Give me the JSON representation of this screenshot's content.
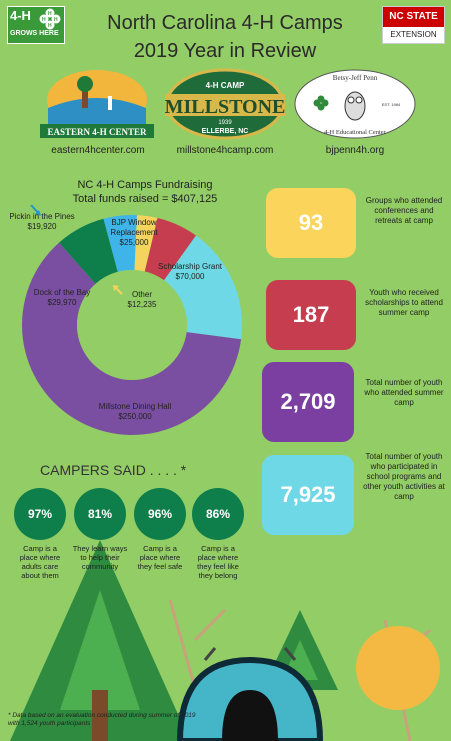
{
  "header": {
    "title_line1": "North Carolina 4-H Camps",
    "title_line2": "2019 Year in Review",
    "logo_left_line1": "4-H",
    "logo_left_line2": "GROWS HERE",
    "logo_right_line1": "NC STATE",
    "logo_right_line2": "EXTENSION"
  },
  "camps": [
    {
      "name": "EASTERN 4-H CENTER",
      "url": "eastern4hcenter.com"
    },
    {
      "name_top": "4-H CAMP",
      "name": "MILLSTONE",
      "year": "1939",
      "name_bottom": "ELLERBE, NC",
      "url": "millstone4hcamp.com"
    },
    {
      "name_top": "Betsy-Jeff Penn",
      "name_bottom": "4-H Educational Center",
      "est": "EST. 1984",
      "url": "bjpenn4h.org"
    }
  ],
  "fundraising": {
    "title": "NC 4-H Camps Fundraising",
    "total_label": "Total funds raised = $407,125"
  },
  "chart_data": {
    "type": "pie",
    "variant": "donut",
    "slices": [
      {
        "label": "Scholarship Grant",
        "value": 70000,
        "value_label": "$70,000",
        "color": "#6fd8e6"
      },
      {
        "label": "Millstone Dining Hall",
        "value": 250000,
        "value_label": "$250,000",
        "color": "#7a4fa1"
      },
      {
        "label": "Dock of the Bay",
        "value": 29970,
        "value_label": "$29,970",
        "color": "#0e7f4b"
      },
      {
        "label": "Pickin in the Pines",
        "value": 19920,
        "value_label": "$19,920",
        "color": "#3fb4e8"
      },
      {
        "label": "Other",
        "value": 12235,
        "value_label": "$12,235",
        "color": "#f4d35e"
      },
      {
        "label": "BJP Window Replacement",
        "value": 25000,
        "value_label": "$25,000",
        "color": "#c63d4f"
      }
    ]
  },
  "stats": [
    {
      "value": "93",
      "desc": "Groups who attended conferences and retreats at camp",
      "color": "#fbd45c"
    },
    {
      "value": "187",
      "desc": "Youth who received scholarships to attend summer camp",
      "color": "#c63d4f"
    },
    {
      "value": "2,709",
      "desc": "Total number of youth who attended summer camp",
      "color": "#7a3fa1"
    },
    {
      "value": "7,925",
      "desc": "Total number of youth who participated in school programs and other youth activities at camp",
      "color": "#6fd8e6"
    }
  ],
  "campers": {
    "title": "CAMPERS SAID . . . . *",
    "items": [
      {
        "pct": "97%",
        "desc": "Camp is a place where adults care about them"
      },
      {
        "pct": "81%",
        "desc": "They learn ways to help their community"
      },
      {
        "pct": "96%",
        "desc": "Camp is a place where they feel safe"
      },
      {
        "pct": "86%",
        "desc": "Camp is a place where they feel like they belong"
      }
    ],
    "footnote": "* Data based on an evaluation conducted during summer of 2019 with 1,524 youth participants"
  }
}
